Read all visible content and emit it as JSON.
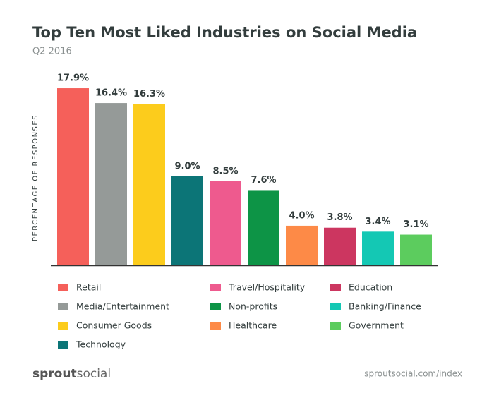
{
  "chart_data": {
    "type": "bar",
    "title": "Top Ten Most Liked Industries on Social Media",
    "subtitle": "Q2 2016",
    "y_label": "PERCENTAGE OF RESPONSES",
    "categories": [
      "Retail",
      "Media/Entertainment",
      "Consumer Goods",
      "Technology",
      "Travel/Hospitality",
      "Non-profits",
      "Healthcare",
      "Education",
      "Banking/Finance",
      "Government"
    ],
    "values": [
      17.9,
      16.4,
      16.3,
      9.0,
      8.5,
      7.6,
      4.0,
      3.8,
      3.4,
      3.1
    ],
    "value_labels": [
      "17.9%",
      "16.4%",
      "16.3%",
      "9.0%",
      "8.5%",
      "7.6%",
      "4.0%",
      "3.8%",
      "3.4%",
      "3.1%"
    ],
    "colors": [
      "#f5605a",
      "#959a98",
      "#fccc1c",
      "#0c7577",
      "#ee5a8e",
      "#0d9446",
      "#fd8a47",
      "#cc3660",
      "#14c8b4",
      "#5ccc5e"
    ],
    "ylim": [
      0,
      20
    ]
  },
  "footer": {
    "logo_bold": "sprout",
    "logo_light": "social",
    "source": "sproutsocial.com/index"
  }
}
